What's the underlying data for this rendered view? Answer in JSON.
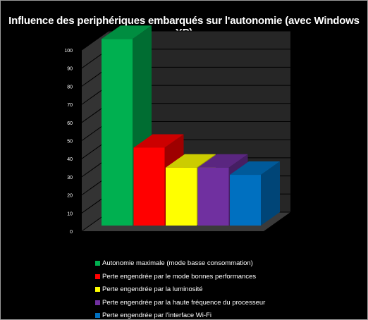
{
  "chart_data": {
    "type": "bar",
    "title": "Influence des  periphériques embarqués sur l'autonomie (avec Windows XP)",
    "xlabel": "",
    "ylabel": "",
    "ylim": [
      0,
      100
    ],
    "yticks": [
      0,
      10,
      20,
      30,
      40,
      50,
      60,
      70,
      80,
      90,
      100
    ],
    "grid": true,
    "three_d": true,
    "legend_position": "bottom",
    "categories": [
      "Autonomie maximale (mode basse consommation)",
      "Perte engendrée par le mode bonnes performances",
      "Perte engendrée par la luminosité",
      "Perte engendrée par la haute fréquence du processeur",
      "Perte engendrée par l'interface Wi-Fi"
    ],
    "values": [
      103,
      43,
      32,
      32,
      28
    ],
    "colors": [
      "#00b050",
      "#ff0000",
      "#ffff00",
      "#7030a0",
      "#0070c0"
    ],
    "background": "#000000",
    "wall_color": "#262626",
    "text_color": "#ffffff"
  }
}
